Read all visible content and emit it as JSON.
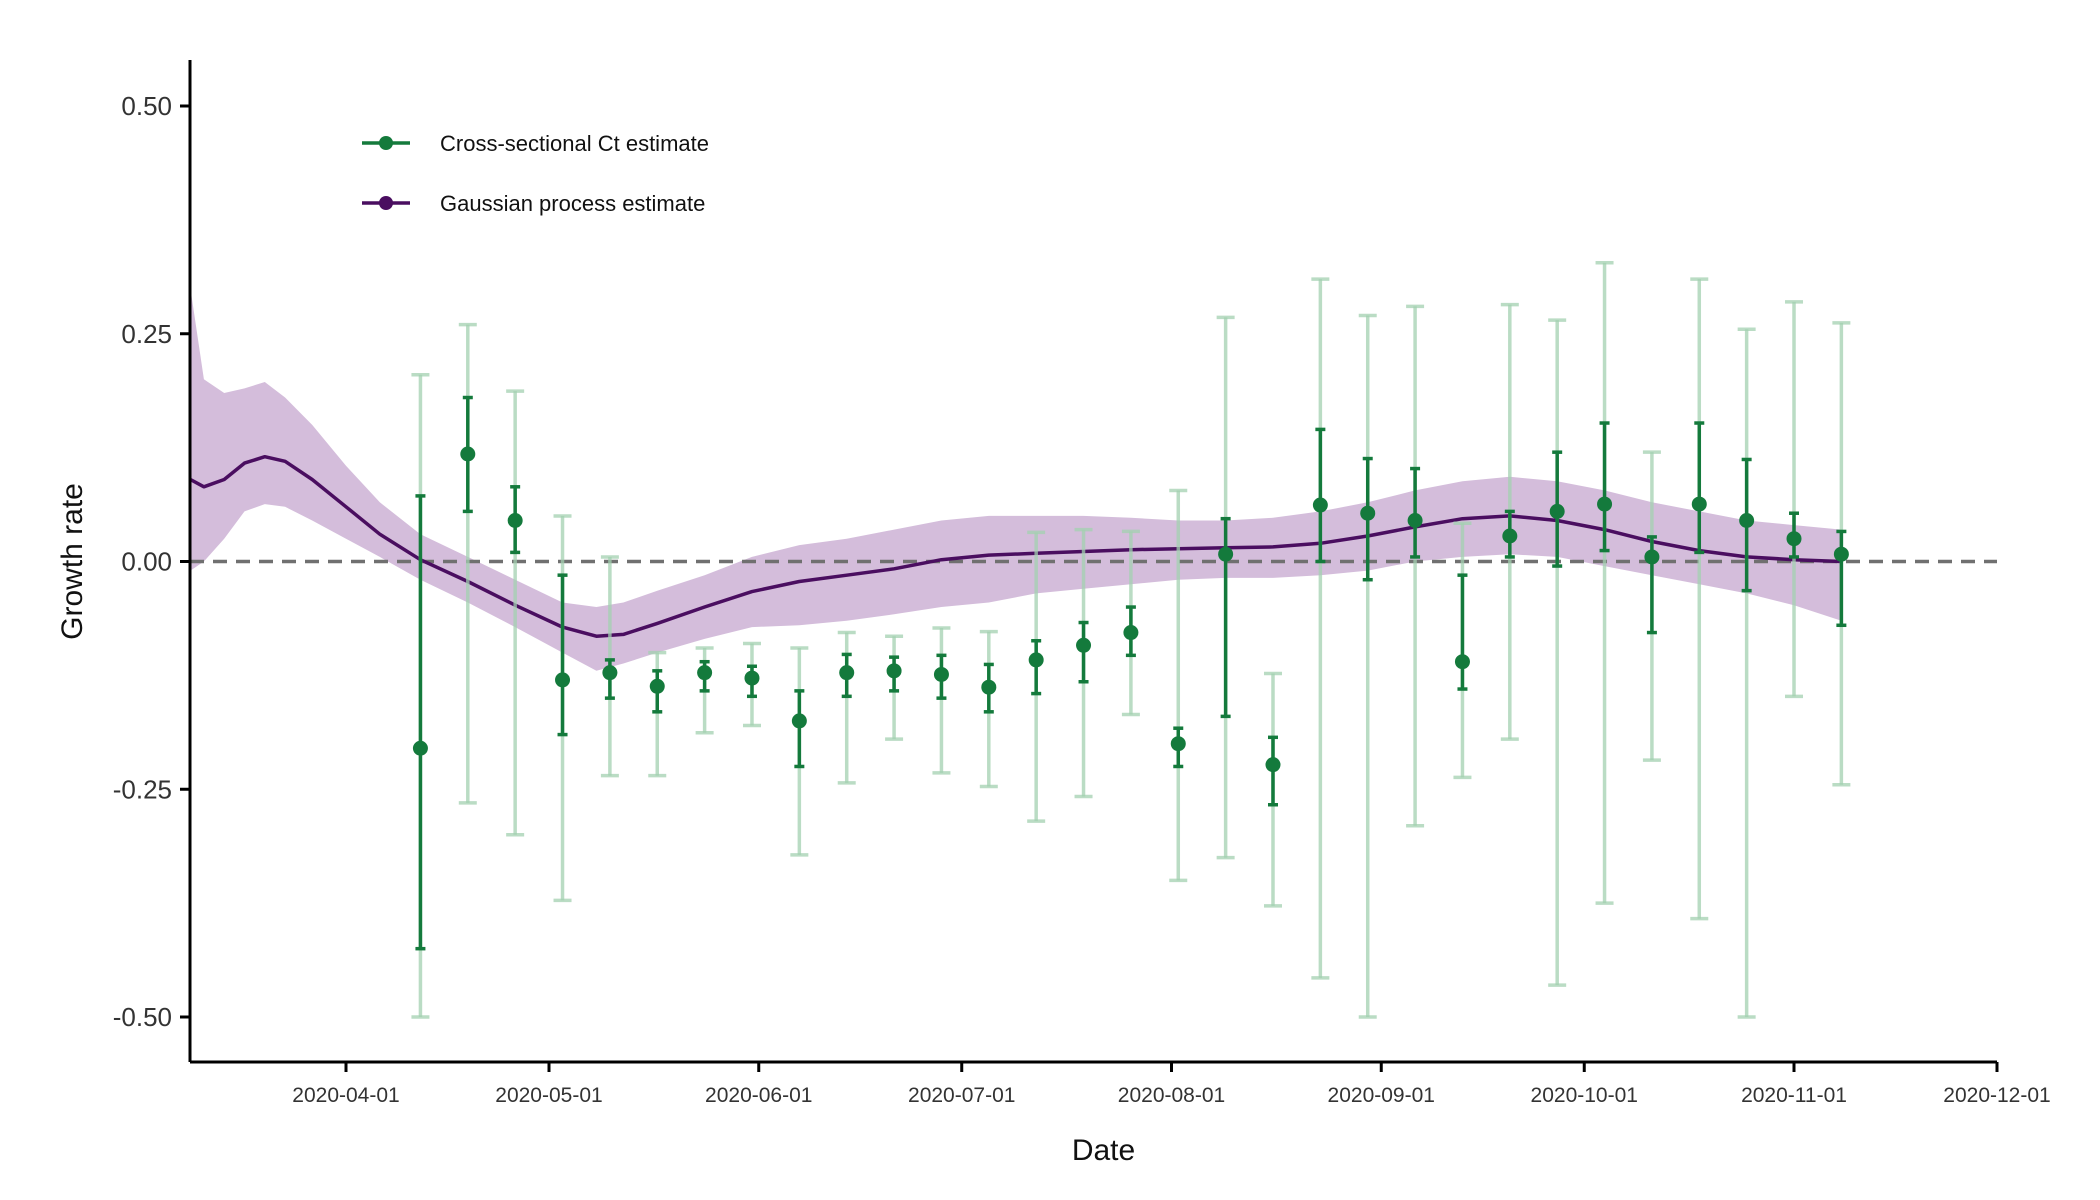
{
  "chart_data": {
    "type": "line",
    "xlabel": "Date",
    "ylabel": "Growth rate",
    "x_ticks": [
      "2020-04-01",
      "2020-05-01",
      "2020-06-01",
      "2020-07-01",
      "2020-08-01",
      "2020-09-01",
      "2020-10-01",
      "2020-11-01",
      "2020-12-01"
    ],
    "y_ticks": [
      0.5,
      0.25,
      0.0,
      -0.25,
      -0.5
    ],
    "y_tick_labels": [
      "0.50",
      "0.25",
      "0.00",
      "-0.25",
      "-0.50"
    ],
    "xlim": [
      "2020-03-09",
      "2020-12-01"
    ],
    "ylim": [
      -0.55,
      0.55
    ],
    "reference_line": {
      "y": 0,
      "style": "dashed",
      "color": "#707070"
    },
    "grid": false,
    "legend": {
      "position": "top-left",
      "entries": [
        {
          "label": "Cross-sectional Ct estimate",
          "color": "#147a3c"
        },
        {
          "label": "Gaussian process estimate",
          "color": "#4a0e60"
        }
      ]
    },
    "colors": {
      "ct_point": "#147a3c",
      "ct_inner_interval": "#147a3c",
      "ct_outer_interval": "#a3d1b1",
      "gp_line": "#4a0e60",
      "gp_band": "#d4bddb"
    },
    "series": [
      {
        "name": "Cross-sectional Ct estimate",
        "kind": "points_with_intervals",
        "points": [
          {
            "x": "2020-04-12",
            "y": -0.205,
            "lo50": -0.425,
            "hi50": 0.072,
            "lo95": -0.5,
            "hi95": 0.205
          },
          {
            "x": "2020-04-19",
            "y": 0.118,
            "lo50": 0.055,
            "hi50": 0.18,
            "lo95": -0.265,
            "hi95": 0.26
          },
          {
            "x": "2020-04-26",
            "y": 0.045,
            "lo50": 0.01,
            "hi50": 0.082,
            "lo95": -0.3,
            "hi95": 0.187
          },
          {
            "x": "2020-05-03",
            "y": -0.13,
            "lo50": -0.19,
            "hi50": -0.015,
            "lo95": -0.372,
            "hi95": 0.05
          },
          {
            "x": "2020-05-10",
            "y": -0.122,
            "lo50": -0.15,
            "hi50": -0.108,
            "lo95": -0.235,
            "hi95": 0.005
          },
          {
            "x": "2020-05-17",
            "y": -0.137,
            "lo50": -0.165,
            "hi50": -0.12,
            "lo95": -0.235,
            "hi95": -0.1
          },
          {
            "x": "2020-05-24",
            "y": -0.122,
            "lo50": -0.142,
            "hi50": -0.11,
            "lo95": -0.188,
            "hi95": -0.095
          },
          {
            "x": "2020-05-31",
            "y": -0.128,
            "lo50": -0.148,
            "hi50": -0.115,
            "lo95": -0.18,
            "hi95": -0.09
          },
          {
            "x": "2020-06-07",
            "y": -0.175,
            "lo50": -0.225,
            "hi50": -0.142,
            "lo95": -0.322,
            "hi95": -0.095
          },
          {
            "x": "2020-06-14",
            "y": -0.122,
            "lo50": -0.148,
            "hi50": -0.102,
            "lo95": -0.243,
            "hi95": -0.078
          },
          {
            "x": "2020-06-21",
            "y": -0.12,
            "lo50": -0.142,
            "hi50": -0.105,
            "lo95": -0.195,
            "hi95": -0.082
          },
          {
            "x": "2020-06-28",
            "y": -0.124,
            "lo50": -0.15,
            "hi50": -0.103,
            "lo95": -0.232,
            "hi95": -0.073
          },
          {
            "x": "2020-07-05",
            "y": -0.138,
            "lo50": -0.165,
            "hi50": -0.113,
            "lo95": -0.247,
            "hi95": -0.077
          },
          {
            "x": "2020-07-12",
            "y": -0.108,
            "lo50": -0.145,
            "hi50": -0.087,
            "lo95": -0.285,
            "hi95": 0.032
          },
          {
            "x": "2020-07-19",
            "y": -0.092,
            "lo50": -0.132,
            "hi50": -0.067,
            "lo95": -0.258,
            "hi95": 0.035
          },
          {
            "x": "2020-07-26",
            "y": -0.078,
            "lo50": -0.103,
            "hi50": -0.05,
            "lo95": -0.168,
            "hi95": 0.033
          },
          {
            "x": "2020-08-02",
            "y": -0.2,
            "lo50": -0.225,
            "hi50": -0.183,
            "lo95": -0.35,
            "hi95": 0.078
          },
          {
            "x": "2020-08-09",
            "y": 0.008,
            "lo50": -0.17,
            "hi50": 0.047,
            "lo95": -0.325,
            "hi95": 0.268
          },
          {
            "x": "2020-08-16",
            "y": -0.223,
            "lo50": -0.267,
            "hi50": -0.193,
            "lo95": -0.378,
            "hi95": -0.123
          },
          {
            "x": "2020-08-23",
            "y": 0.062,
            "lo50": 0.0,
            "hi50": 0.145,
            "lo95": -0.457,
            "hi95": 0.31
          },
          {
            "x": "2020-08-30",
            "y": 0.053,
            "lo50": -0.02,
            "hi50": 0.113,
            "lo95": -0.5,
            "hi95": 0.27
          },
          {
            "x": "2020-09-06",
            "y": 0.045,
            "lo50": 0.005,
            "hi50": 0.102,
            "lo95": -0.29,
            "hi95": 0.28
          },
          {
            "x": "2020-09-13",
            "y": -0.11,
            "lo50": -0.14,
            "hi50": -0.015,
            "lo95": -0.237,
            "hi95": 0.042
          },
          {
            "x": "2020-09-20",
            "y": 0.028,
            "lo50": 0.005,
            "hi50": 0.055,
            "lo95": -0.195,
            "hi95": 0.282
          },
          {
            "x": "2020-09-27",
            "y": 0.055,
            "lo50": -0.005,
            "hi50": 0.12,
            "lo95": -0.465,
            "hi95": 0.265
          },
          {
            "x": "2020-10-04",
            "y": 0.063,
            "lo50": 0.012,
            "hi50": 0.152,
            "lo95": -0.375,
            "hi95": 0.328
          },
          {
            "x": "2020-10-11",
            "y": 0.005,
            "lo50": -0.078,
            "hi50": 0.027,
            "lo95": -0.218,
            "hi95": 0.12
          },
          {
            "x": "2020-10-18",
            "y": 0.063,
            "lo50": 0.01,
            "hi50": 0.152,
            "lo95": -0.392,
            "hi95": 0.31
          },
          {
            "x": "2020-10-25",
            "y": 0.045,
            "lo50": -0.032,
            "hi50": 0.112,
            "lo95": -0.5,
            "hi95": 0.255
          },
          {
            "x": "2020-11-01",
            "y": 0.025,
            "lo50": 0.005,
            "hi50": 0.053,
            "lo95": -0.148,
            "hi95": 0.285
          },
          {
            "x": "2020-11-08",
            "y": 0.008,
            "lo50": -0.07,
            "hi50": 0.033,
            "lo95": -0.245,
            "hi95": 0.262
          }
        ]
      },
      {
        "name": "Gaussian process estimate",
        "kind": "line_with_band",
        "points": [
          {
            "x": "2020-03-09",
            "y": 0.09,
            "lo": -0.01,
            "hi": 0.3
          },
          {
            "x": "2020-03-11",
            "y": 0.082,
            "lo": 0.0,
            "hi": 0.2
          },
          {
            "x": "2020-03-14",
            "y": 0.09,
            "lo": 0.025,
            "hi": 0.185
          },
          {
            "x": "2020-03-17",
            "y": 0.108,
            "lo": 0.055,
            "hi": 0.19
          },
          {
            "x": "2020-03-20",
            "y": 0.115,
            "lo": 0.063,
            "hi": 0.197
          },
          {
            "x": "2020-03-23",
            "y": 0.11,
            "lo": 0.06,
            "hi": 0.18
          },
          {
            "x": "2020-03-27",
            "y": 0.09,
            "lo": 0.045,
            "hi": 0.15
          },
          {
            "x": "2020-04-01",
            "y": 0.06,
            "lo": 0.025,
            "hi": 0.105
          },
          {
            "x": "2020-04-06",
            "y": 0.03,
            "lo": 0.005,
            "hi": 0.065
          },
          {
            "x": "2020-04-12",
            "y": 0.002,
            "lo": -0.02,
            "hi": 0.03
          },
          {
            "x": "2020-04-19",
            "y": -0.022,
            "lo": -0.045,
            "hi": 0.005
          },
          {
            "x": "2020-04-26",
            "y": -0.048,
            "lo": -0.072,
            "hi": -0.02
          },
          {
            "x": "2020-05-03",
            "y": -0.072,
            "lo": -0.1,
            "hi": -0.045
          },
          {
            "x": "2020-05-08",
            "y": -0.082,
            "lo": -0.12,
            "hi": -0.05
          },
          {
            "x": "2020-05-12",
            "y": -0.08,
            "lo": -0.112,
            "hi": -0.045
          },
          {
            "x": "2020-05-17",
            "y": -0.068,
            "lo": -0.1,
            "hi": -0.032
          },
          {
            "x": "2020-05-24",
            "y": -0.05,
            "lo": -0.085,
            "hi": -0.015
          },
          {
            "x": "2020-05-31",
            "y": -0.033,
            "lo": -0.072,
            "hi": 0.005
          },
          {
            "x": "2020-06-07",
            "y": -0.022,
            "lo": -0.07,
            "hi": 0.018
          },
          {
            "x": "2020-06-14",
            "y": -0.015,
            "lo": -0.065,
            "hi": 0.025
          },
          {
            "x": "2020-06-21",
            "y": -0.008,
            "lo": -0.058,
            "hi": 0.035
          },
          {
            "x": "2020-06-28",
            "y": 0.002,
            "lo": -0.05,
            "hi": 0.045
          },
          {
            "x": "2020-07-05",
            "y": 0.007,
            "lo": -0.045,
            "hi": 0.05
          },
          {
            "x": "2020-07-12",
            "y": 0.009,
            "lo": -0.035,
            "hi": 0.05
          },
          {
            "x": "2020-07-19",
            "y": 0.011,
            "lo": -0.03,
            "hi": 0.05
          },
          {
            "x": "2020-07-26",
            "y": 0.013,
            "lo": -0.025,
            "hi": 0.048
          },
          {
            "x": "2020-08-02",
            "y": 0.014,
            "lo": -0.02,
            "hi": 0.045
          },
          {
            "x": "2020-08-09",
            "y": 0.015,
            "lo": -0.018,
            "hi": 0.045
          },
          {
            "x": "2020-08-16",
            "y": 0.016,
            "lo": -0.018,
            "hi": 0.048
          },
          {
            "x": "2020-08-23",
            "y": 0.02,
            "lo": -0.015,
            "hi": 0.055
          },
          {
            "x": "2020-08-30",
            "y": 0.028,
            "lo": -0.01,
            "hi": 0.065
          },
          {
            "x": "2020-09-06",
            "y": 0.038,
            "lo": 0.0,
            "hi": 0.078
          },
          {
            "x": "2020-09-13",
            "y": 0.047,
            "lo": 0.005,
            "hi": 0.088
          },
          {
            "x": "2020-09-20",
            "y": 0.05,
            "lo": 0.008,
            "hi": 0.093
          },
          {
            "x": "2020-09-27",
            "y": 0.045,
            "lo": 0.005,
            "hi": 0.088
          },
          {
            "x": "2020-10-04",
            "y": 0.035,
            "lo": -0.005,
            "hi": 0.078
          },
          {
            "x": "2020-10-11",
            "y": 0.022,
            "lo": -0.015,
            "hi": 0.065
          },
          {
            "x": "2020-10-18",
            "y": 0.012,
            "lo": -0.025,
            "hi": 0.055
          },
          {
            "x": "2020-10-25",
            "y": 0.005,
            "lo": -0.035,
            "hi": 0.045
          },
          {
            "x": "2020-11-01",
            "y": 0.002,
            "lo": -0.048,
            "hi": 0.04
          },
          {
            "x": "2020-11-08",
            "y": 0.0,
            "lo": -0.065,
            "hi": 0.035
          }
        ]
      }
    ]
  }
}
